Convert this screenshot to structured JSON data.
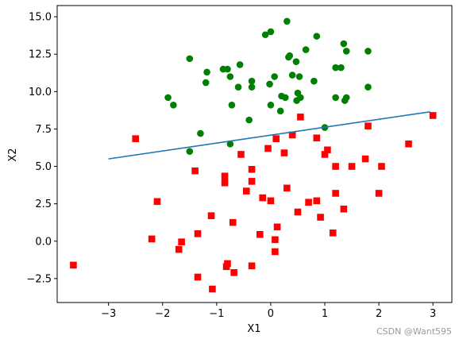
{
  "chart_data": {
    "type": "scatter",
    "xlabel": "X1",
    "ylabel": "X2",
    "xlim": [
      -3.95,
      3.35
    ],
    "ylim": [
      -4.1,
      15.75
    ],
    "xticks": [
      -3,
      -2,
      -1,
      0,
      1,
      2,
      3
    ],
    "yticks": [
      -2.5,
      0.0,
      2.5,
      5.0,
      7.5,
      10.0,
      12.5,
      15.0
    ],
    "ytick_labels": [
      "−2.5",
      "0.0",
      "2.5",
      "5.0",
      "7.5",
      "10.0",
      "12.5",
      "15.0"
    ],
    "xtick_labels": [
      "−3",
      "−2",
      "−1",
      "0",
      "1",
      "2",
      "3"
    ],
    "grid": false,
    "series": [
      {
        "marker": "circle",
        "color": "#008000",
        "points": [
          [
            0.3,
            14.7
          ],
          [
            -0.1,
            13.8
          ],
          [
            0.0,
            14.0
          ],
          [
            0.85,
            13.7
          ],
          [
            1.35,
            13.2
          ],
          [
            -1.5,
            12.2
          ],
          [
            0.65,
            12.8
          ],
          [
            1.4,
            12.7
          ],
          [
            1.8,
            12.7
          ],
          [
            0.35,
            12.4
          ],
          [
            0.33,
            12.3
          ],
          [
            0.47,
            12.0
          ],
          [
            -0.57,
            11.8
          ],
          [
            -0.88,
            11.5
          ],
          [
            -0.8,
            11.5
          ],
          [
            -1.18,
            11.3
          ],
          [
            1.2,
            11.6
          ],
          [
            1.3,
            11.6
          ],
          [
            0.4,
            11.1
          ],
          [
            0.53,
            11.0
          ],
          [
            0.07,
            11.0
          ],
          [
            -0.75,
            11.0
          ],
          [
            -1.2,
            10.6
          ],
          [
            -0.35,
            10.7
          ],
          [
            0.8,
            10.7
          ],
          [
            -0.6,
            10.3
          ],
          [
            -0.35,
            10.3
          ],
          [
            -0.02,
            10.5
          ],
          [
            1.8,
            10.3
          ],
          [
            0.5,
            9.9
          ],
          [
            0.2,
            9.7
          ],
          [
            0.27,
            9.6
          ],
          [
            0.55,
            9.6
          ],
          [
            -1.9,
            9.6
          ],
          [
            1.2,
            9.6
          ],
          [
            1.4,
            9.6
          ],
          [
            0.48,
            9.4
          ],
          [
            1.37,
            9.4
          ],
          [
            -1.8,
            9.1
          ],
          [
            -0.72,
            9.1
          ],
          [
            0.0,
            9.1
          ],
          [
            0.18,
            8.7
          ],
          [
            -0.4,
            8.1
          ],
          [
            1.0,
            7.6
          ],
          [
            -1.3,
            7.2
          ],
          [
            -0.75,
            6.5
          ],
          [
            -1.5,
            6.0
          ]
        ]
      },
      {
        "marker": "square",
        "color": "#ff0000",
        "points": [
          [
            3.0,
            8.4
          ],
          [
            0.55,
            8.3
          ],
          [
            1.8,
            7.7
          ],
          [
            0.4,
            7.1
          ],
          [
            0.85,
            6.9
          ],
          [
            -2.5,
            6.85
          ],
          [
            0.1,
            6.85
          ],
          [
            2.55,
            6.5
          ],
          [
            -0.05,
            6.2
          ],
          [
            1.05,
            6.1
          ],
          [
            0.25,
            5.9
          ],
          [
            1.0,
            5.8
          ],
          [
            -0.55,
            5.8
          ],
          [
            1.75,
            5.5
          ],
          [
            1.2,
            5.0
          ],
          [
            1.5,
            5.0
          ],
          [
            2.05,
            5.0
          ],
          [
            -0.35,
            4.8
          ],
          [
            -1.4,
            4.7
          ],
          [
            -0.85,
            4.35
          ],
          [
            -0.85,
            3.9
          ],
          [
            -0.35,
            4.0
          ],
          [
            -0.45,
            3.35
          ],
          [
            0.3,
            3.55
          ],
          [
            1.2,
            3.2
          ],
          [
            2.0,
            3.2
          ],
          [
            -0.15,
            2.9
          ],
          [
            0.0,
            2.7
          ],
          [
            0.7,
            2.6
          ],
          [
            0.85,
            2.7
          ],
          [
            -2.1,
            2.65
          ],
          [
            1.35,
            2.15
          ],
          [
            0.5,
            1.95
          ],
          [
            -1.1,
            1.7
          ],
          [
            0.92,
            1.6
          ],
          [
            -0.7,
            1.25
          ],
          [
            0.12,
            0.95
          ],
          [
            -1.35,
            0.5
          ],
          [
            -0.2,
            0.45
          ],
          [
            1.15,
            0.55
          ],
          [
            -2.2,
            0.15
          ],
          [
            0.08,
            0.1
          ],
          [
            -1.65,
            -0.05
          ],
          [
            -1.7,
            -0.55
          ],
          [
            0.08,
            -0.7
          ],
          [
            -3.65,
            -1.6
          ],
          [
            -0.8,
            -1.5
          ],
          [
            -0.35,
            -1.65
          ],
          [
            -0.82,
            -1.7
          ],
          [
            -0.68,
            -2.1
          ],
          [
            -1.35,
            -2.4
          ],
          [
            -1.08,
            -3.2
          ]
        ]
      }
    ],
    "line": {
      "color": "#1f77b4",
      "x": [
        -3.0,
        2.95
      ],
      "y": [
        5.5,
        8.65
      ]
    }
  },
  "watermark": "CSDN @Want595"
}
